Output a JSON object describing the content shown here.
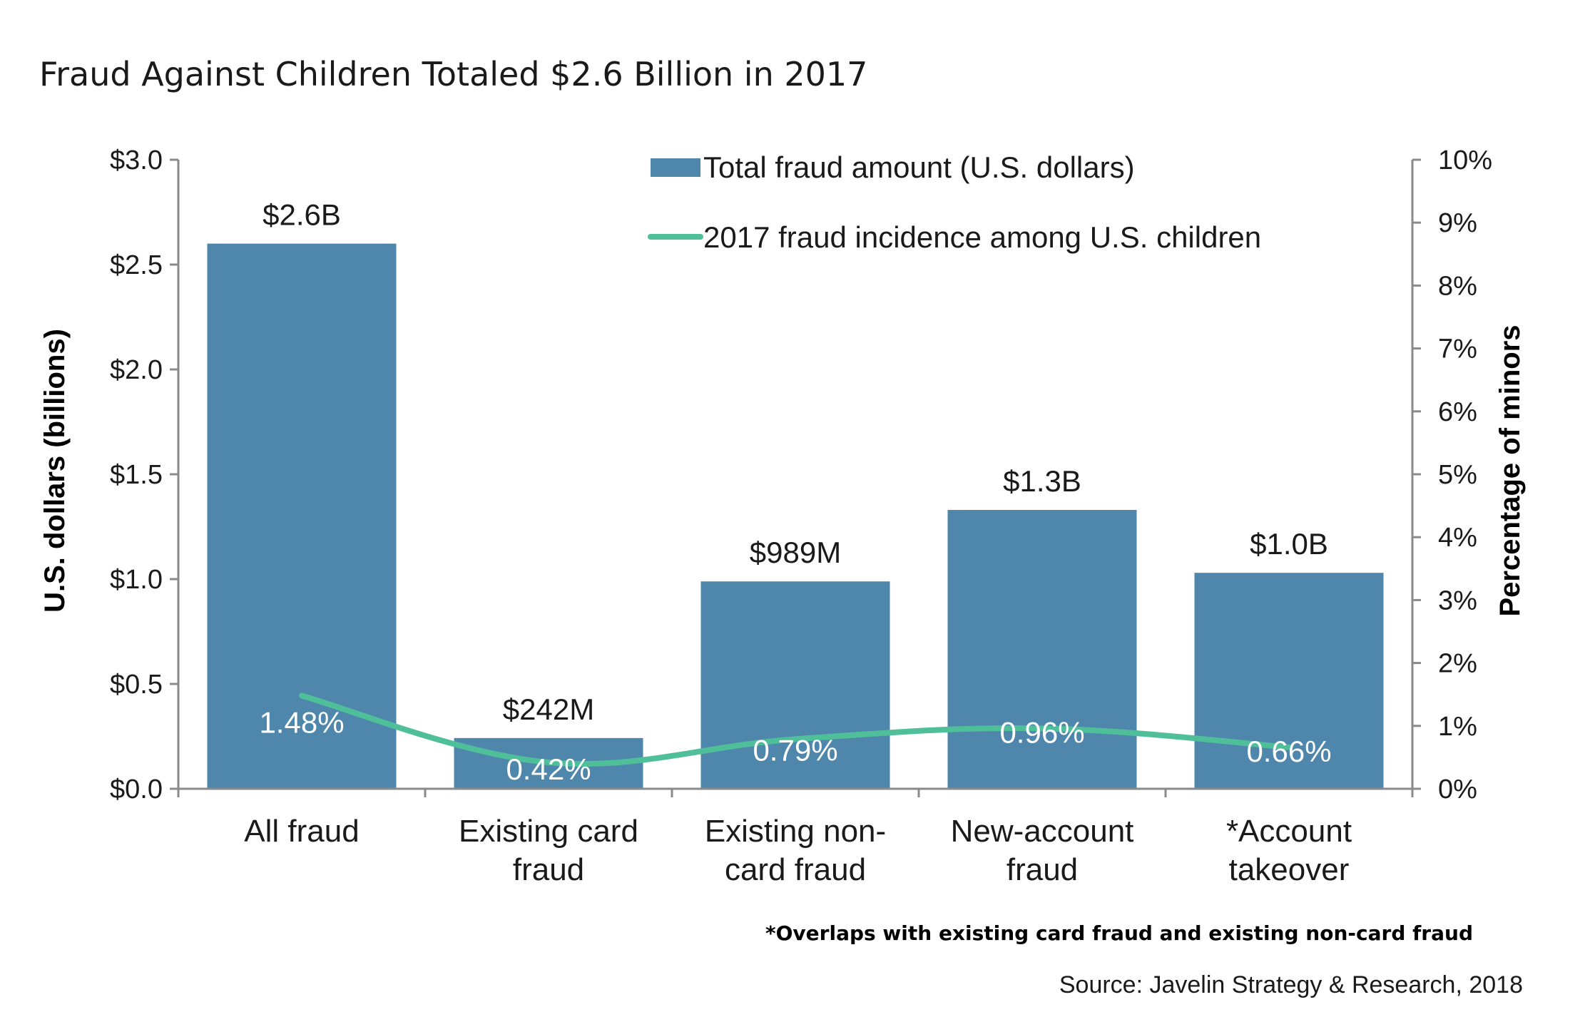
{
  "chart_data": {
    "type": "bar",
    "title": "Fraud Against Children Totaled $2.6 Billion in 2017",
    "categories": [
      "All fraud",
      "Existing card fraud",
      "Existing non-card fraud",
      "New-account fraud",
      "*Account takeover"
    ],
    "category_lines": [
      [
        "All fraud"
      ],
      [
        "Existing card",
        "fraud"
      ],
      [
        "Existing non-",
        "card fraud"
      ],
      [
        "New-account",
        "fraud"
      ],
      [
        "*Account",
        "takeover"
      ]
    ],
    "series": [
      {
        "name": "Total fraud amount (U.S. dollars)",
        "type": "bar",
        "axis": "left",
        "color": "#4e87ab",
        "values": [
          2.6,
          0.242,
          0.989,
          1.33,
          1.03
        ],
        "labels": [
          "$2.6B",
          "$242M",
          "$989M",
          "$1.3B",
          "$1.0B"
        ]
      },
      {
        "name": "2017 fraud incidence among U.S. children",
        "type": "line",
        "axis": "right",
        "color": "#4fbf9a",
        "values": [
          1.48,
          0.42,
          0.79,
          0.96,
          0.66
        ],
        "labels": [
          "1.48%",
          "0.42%",
          "0.79%",
          "0.96%",
          "0.66%"
        ]
      }
    ],
    "ylabel": "U.S. dollars (billions)",
    "ylim": [
      0,
      3.0
    ],
    "yticks": [
      0,
      0.5,
      1.0,
      1.5,
      2.0,
      2.5,
      3.0
    ],
    "ytick_labels": [
      "$0.0",
      "$0.5",
      "$1.0",
      "$1.5",
      "$2.0",
      "$2.5",
      "$3.0"
    ],
    "y2label": "Percentage of minors",
    "y2lim": [
      0,
      10
    ],
    "y2ticks": [
      0,
      1,
      2,
      3,
      4,
      5,
      6,
      7,
      8,
      9,
      10
    ],
    "y2tick_labels": [
      "0%",
      "1%",
      "2%",
      "3%",
      "4%",
      "5%",
      "6%",
      "7%",
      "8%",
      "9%",
      "10%"
    ],
    "legend_position": "top",
    "grid": false,
    "footnote": "*Overlaps with existing card fraud and existing non-card fraud",
    "source": "Source: Javelin Strategy & Research, 2018"
  }
}
